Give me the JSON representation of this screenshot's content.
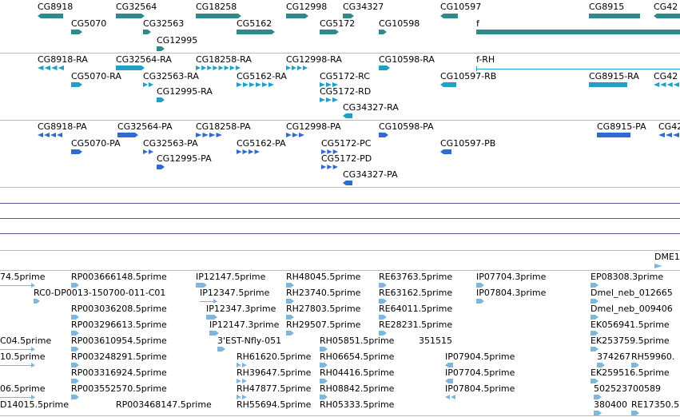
{
  "colors": {
    "gene": "#2e8b8b",
    "transcript": "#1fa0c4",
    "protein": "#2f6bd0",
    "est": "#7fb6dc",
    "divider": "#bdbdbd",
    "purple_line": "#6b4a9a",
    "text": "#000000"
  },
  "tracks": [
    {
      "id": "genes",
      "kind": "gene",
      "features": [
        {
          "label": "CG8918"
        },
        {
          "label": "CG32564"
        },
        {
          "label": "CG18258"
        },
        {
          "label": "CG12998"
        },
        {
          "label": "CG34327"
        },
        {
          "label": "CG10597"
        },
        {
          "label": "CG8915"
        },
        {
          "label": "CG42"
        },
        {
          "label": "CG5070"
        },
        {
          "label": "CG32563"
        },
        {
          "label": "CG5162"
        },
        {
          "label": "CG5172"
        },
        {
          "label": "CG10598"
        },
        {
          "label": "f"
        },
        {
          "label": "CG12995"
        }
      ]
    },
    {
      "id": "transcripts",
      "kind": "transcript",
      "features": [
        {
          "label": "CG8918-RA"
        },
        {
          "label": "CG32564-RA"
        },
        {
          "label": "CG18258-RA"
        },
        {
          "label": "CG12998-RA"
        },
        {
          "label": "CG10598-RA"
        },
        {
          "label": "f-RH"
        },
        {
          "label": "CG5070-RA"
        },
        {
          "label": "CG32563-RA"
        },
        {
          "label": "CG5162-RA"
        },
        {
          "label": "CG5172-RC"
        },
        {
          "label": "CG10597-RB"
        },
        {
          "label": "CG8915-RA"
        },
        {
          "label": "CG42"
        },
        {
          "label": "CG12995-RA"
        },
        {
          "label": "CG5172-RD"
        },
        {
          "label": "CG34327-RA"
        }
      ]
    },
    {
      "id": "proteins",
      "kind": "protein",
      "features": [
        {
          "label": "CG8918-PA"
        },
        {
          "label": "CG32564-PA"
        },
        {
          "label": "CG18258-PA"
        },
        {
          "label": "CG12998-PA"
        },
        {
          "label": "CG10598-PA"
        },
        {
          "label": "CG8915-PA"
        },
        {
          "label": "CG42"
        },
        {
          "label": "CG5070-PA"
        },
        {
          "label": "CG32563-PA"
        },
        {
          "label": "CG5162-PA"
        },
        {
          "label": "CG5172-PC"
        },
        {
          "label": "CG10597-PB"
        },
        {
          "label": "CG12995-PA"
        },
        {
          "label": "CG5172-PD"
        },
        {
          "label": "CG34327-PA"
        }
      ]
    },
    {
      "id": "ests",
      "kind": "est",
      "features": [
        {
          "label": "74.5prime"
        },
        {
          "label": "RP003666148.5prime"
        },
        {
          "label": "IP12147.5prime"
        },
        {
          "label": "RH48045.5prime"
        },
        {
          "label": "RE63763.5prime"
        },
        {
          "label": "IP07704.3prime"
        },
        {
          "label": "EP08308.3prime"
        },
        {
          "label": "RC0-DP0013-150700-011-C01"
        },
        {
          "label": "IP12347.5prime"
        },
        {
          "label": "RH23740.5prime"
        },
        {
          "label": "RE63162.5prime"
        },
        {
          "label": "IP07804.3prime"
        },
        {
          "label": "Dmel_neb_012665"
        },
        {
          "label": "RP003036208.5prime"
        },
        {
          "label": "IP12347.3prime"
        },
        {
          "label": "RH27803.5prime"
        },
        {
          "label": "RE64011.5prime"
        },
        {
          "label": "Dmel_neb_009406"
        },
        {
          "label": "RP003296613.5prime"
        },
        {
          "label": "IP12147.3prime"
        },
        {
          "label": "RH29507.5prime"
        },
        {
          "label": "RE28231.5prime"
        },
        {
          "label": "EK056941.5prime"
        },
        {
          "label": "C04.5prime"
        },
        {
          "label": "RP003610954.5prime"
        },
        {
          "label": "3'EST-Nfly-051"
        },
        {
          "label": "RH05851.5prime"
        },
        {
          "label": "351515"
        },
        {
          "label": "EK253759.5prime"
        },
        {
          "label": "10.5prime"
        },
        {
          "label": "RP003248291.5prime"
        },
        {
          "label": "RH61620.5prime"
        },
        {
          "label": "RH06654.5prime"
        },
        {
          "label": "IP07904.5prime"
        },
        {
          "label": "374267"
        },
        {
          "label": "RH59960."
        },
        {
          "label": "RP003316924.5prime"
        },
        {
          "label": "RH39647.5prime"
        },
        {
          "label": "RH04416.5prime"
        },
        {
          "label": "IP07704.5prime"
        },
        {
          "label": "EK259516.5prime"
        },
        {
          "label": "06.5prime"
        },
        {
          "label": "RP003552570.5prime"
        },
        {
          "label": "RH47877.5prime"
        },
        {
          "label": "RH08842.5prime"
        },
        {
          "label": "IP07804.5prime"
        },
        {
          "label": "502523700589"
        },
        {
          "label": "D14015.5prime"
        },
        {
          "label": "RP003468147.5prime"
        },
        {
          "label": "RH55694.5prime"
        },
        {
          "label": "RH05333.5prime"
        },
        {
          "label": "380400"
        },
        {
          "label": "RE17350.5"
        }
      ]
    },
    {
      "id": "other",
      "kind": "misc",
      "features": [
        {
          "label": "DME1"
        }
      ]
    }
  ]
}
